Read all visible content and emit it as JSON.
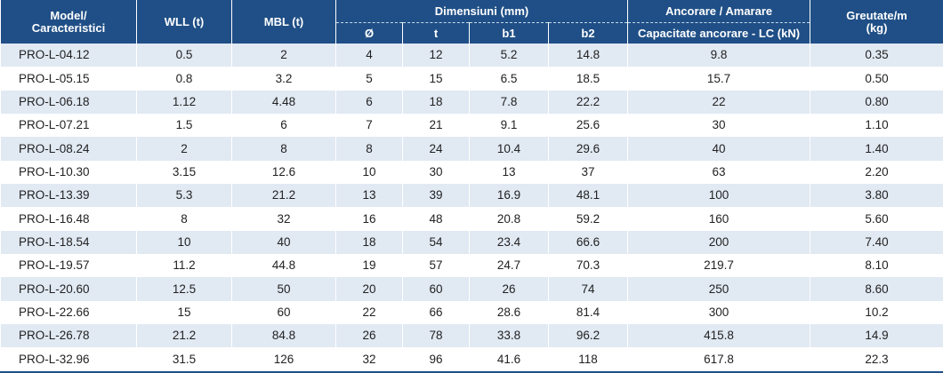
{
  "header": {
    "model": "Model/\nCaracteristici",
    "wll": "WLL (t)",
    "mbl": "MBL (t)",
    "dimensions": "Dimensiuni (mm)",
    "dim_d": "Ø",
    "dim_t": "t",
    "dim_b1": "b1",
    "dim_b2": "b2",
    "anchor_group": "Ancorare / Amarare",
    "anchor_lc": "Capacitate ancorare - LC (kN)",
    "weight": "Greutate/m\n(kg)"
  },
  "rows": [
    {
      "model": "PRO-L-04.12",
      "wll": "0.5",
      "mbl": "2",
      "d": "4",
      "t": "12",
      "b1": "5.2",
      "b2": "14.8",
      "lc": "9.8",
      "weight": "0.35"
    },
    {
      "model": "PRO-L-05.15",
      "wll": "0.8",
      "mbl": "3.2",
      "d": "5",
      "t": "15",
      "b1": "6.5",
      "b2": "18.5",
      "lc": "15.7",
      "weight": "0.50"
    },
    {
      "model": "PRO-L-06.18",
      "wll": "1.12",
      "mbl": "4.48",
      "d": "6",
      "t": "18",
      "b1": "7.8",
      "b2": "22.2",
      "lc": "22",
      "weight": "0.80"
    },
    {
      "model": "PRO-L-07.21",
      "wll": "1.5",
      "mbl": "6",
      "d": "7",
      "t": "21",
      "b1": "9.1",
      "b2": "25.6",
      "lc": "30",
      "weight": "1.10"
    },
    {
      "model": "PRO-L-08.24",
      "wll": "2",
      "mbl": "8",
      "d": "8",
      "t": "24",
      "b1": "10.4",
      "b2": "29.6",
      "lc": "40",
      "weight": "1.40"
    },
    {
      "model": "PRO-L-10.30",
      "wll": "3.15",
      "mbl": "12.6",
      "d": "10",
      "t": "30",
      "b1": "13",
      "b2": "37",
      "lc": "63",
      "weight": "2.20"
    },
    {
      "model": "PRO-L-13.39",
      "wll": "5.3",
      "mbl": "21.2",
      "d": "13",
      "t": "39",
      "b1": "16.9",
      "b2": "48.1",
      "lc": "100",
      "weight": "3.80"
    },
    {
      "model": "PRO-L-16.48",
      "wll": "8",
      "mbl": "32",
      "d": "16",
      "t": "48",
      "b1": "20.8",
      "b2": "59.2",
      "lc": "160",
      "weight": "5.60"
    },
    {
      "model": "PRO-L-18.54",
      "wll": "10",
      "mbl": "40",
      "d": "18",
      "t": "54",
      "b1": "23.4",
      "b2": "66.6",
      "lc": "200",
      "weight": "7.40"
    },
    {
      "model": "PRO-L-19.57",
      "wll": "11.2",
      "mbl": "44.8",
      "d": "19",
      "t": "57",
      "b1": "24.7",
      "b2": "70.3",
      "lc": "219.7",
      "weight": "8.10"
    },
    {
      "model": "PRO-L-20.60",
      "wll": "12.5",
      "mbl": "50",
      "d": "20",
      "t": "60",
      "b1": "26",
      "b2": "74",
      "lc": "250",
      "weight": "8.60"
    },
    {
      "model": "PRO-L-22.66",
      "wll": "15",
      "mbl": "60",
      "d": "22",
      "t": "66",
      "b1": "28.6",
      "b2": "81.4",
      "lc": "300",
      "weight": "10.2"
    },
    {
      "model": "PRO-L-26.78",
      "wll": "21.2",
      "mbl": "84.8",
      "d": "26",
      "t": "78",
      "b1": "33.8",
      "b2": "96.2",
      "lc": "415.8",
      "weight": "14.9"
    },
    {
      "model": "PRO-L-32.96",
      "wll": "31.5",
      "mbl": "126",
      "d": "32",
      "t": "96",
      "b1": "41.6",
      "b2": "118",
      "lc": "617.8",
      "weight": "22.3"
    }
  ]
}
